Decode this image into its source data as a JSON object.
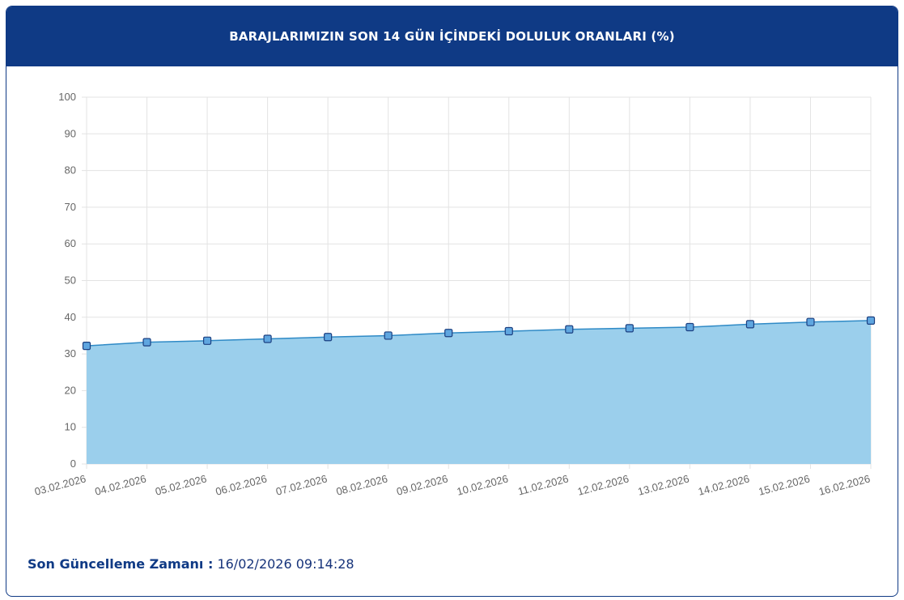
{
  "header": {
    "title": "BARAJLARIMIZIN SON 14 GÜN İÇİNDEKİ DOLULUK ORANLARI (%)"
  },
  "footer": {
    "label": "Son Güncelleme Zamanı :",
    "value": " 16/02/2026 09:14:28"
  },
  "colors": {
    "header_bg": "#0f3a85",
    "area_fill": "#9bcfec",
    "line": "#2f8ac6",
    "marker_fill": "#5fa6e0",
    "marker_stroke": "#1b3f80",
    "grid": "#e3e3e3",
    "tick_text": "#666666"
  },
  "chart_data": {
    "type": "area",
    "categories": [
      "03.02.2026",
      "04.02.2026",
      "05.02.2026",
      "06.02.2026",
      "07.02.2026",
      "08.02.2026",
      "09.02.2026",
      "10.02.2026",
      "11.02.2026",
      "12.02.2026",
      "13.02.2026",
      "14.02.2026",
      "15.02.2026",
      "16.02.2026"
    ],
    "series": [
      {
        "values": [
          32.2,
          33.2,
          33.6,
          34.1,
          34.6,
          35.0,
          35.7,
          36.2,
          36.7,
          37.0,
          37.3,
          38.1,
          38.7,
          39.1
        ]
      }
    ],
    "ylim": [
      0,
      100
    ],
    "yticks": [
      0,
      10,
      20,
      30,
      40,
      50,
      60,
      70,
      80,
      90,
      100
    ],
    "grid": true,
    "legend": "none"
  }
}
